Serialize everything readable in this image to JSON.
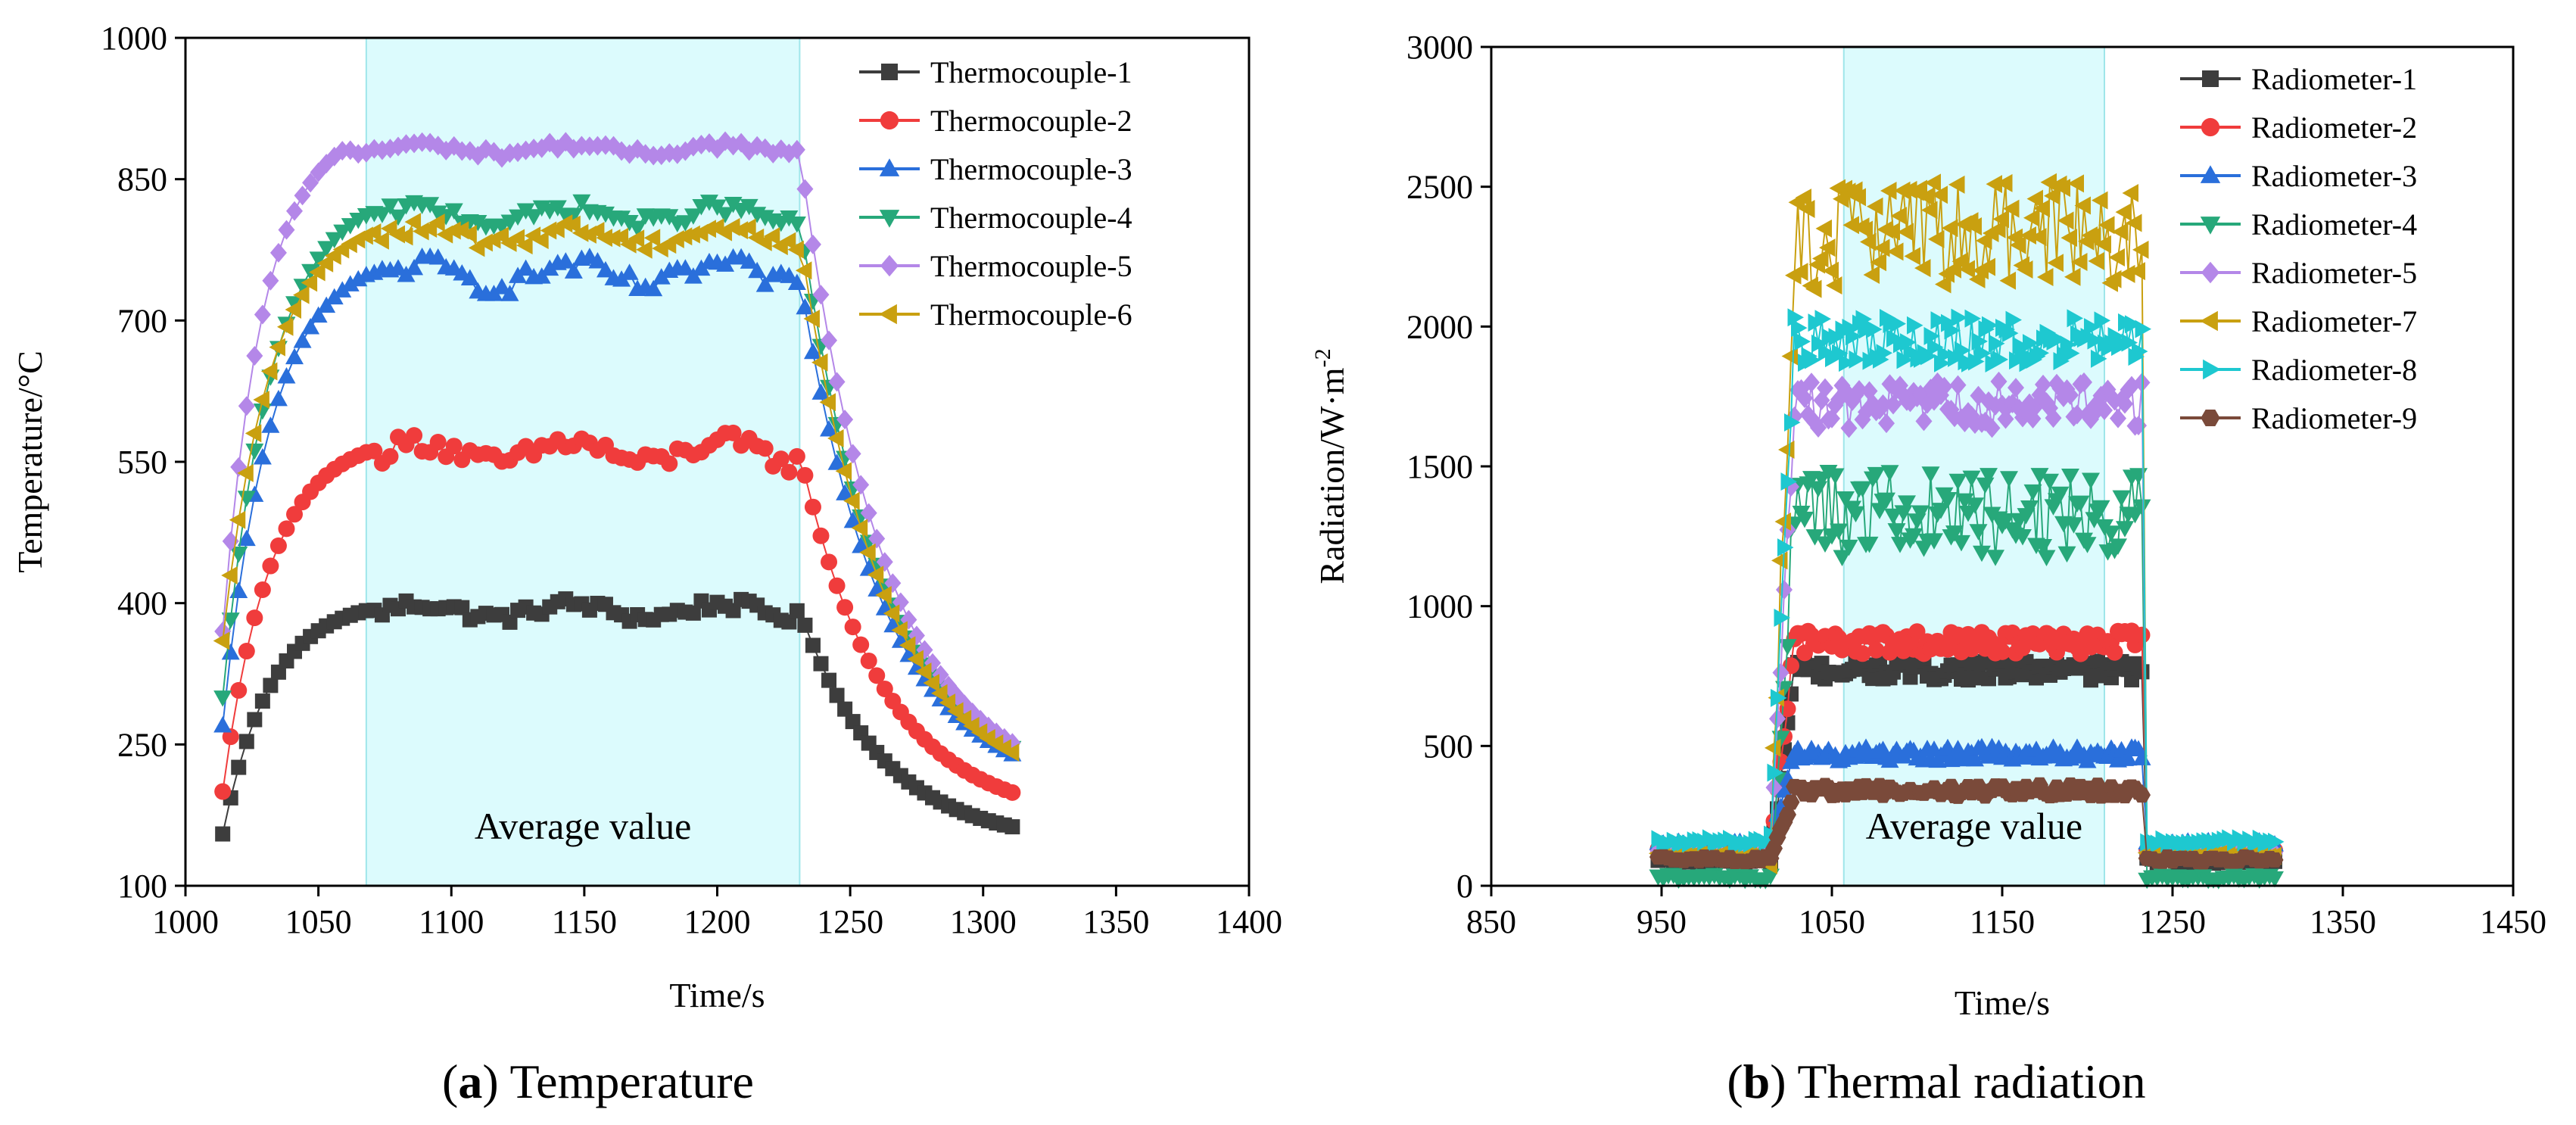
{
  "figure": {
    "caption_a_letter": "a",
    "caption_a_text": " Temperature",
    "caption_b_letter": "b",
    "caption_b_text": " Thermal radiation"
  },
  "chart_data": [
    {
      "type": "scatter",
      "panel": "a",
      "xlabel": "Time/s",
      "ylabel": "Temperature/°C",
      "xlim": [
        1000,
        1400
      ],
      "ylim": [
        100,
        1000
      ],
      "xticks": [
        1000,
        1050,
        1100,
        1150,
        1200,
        1250,
        1300,
        1350,
        1400
      ],
      "yticks": [
        100,
        250,
        400,
        550,
        700,
        850,
        1000
      ],
      "shaded_region": {
        "x0": 1068,
        "x1": 1231,
        "label": "Average value",
        "color": "#dcfbfd"
      },
      "legend_position": "top-right",
      "series": [
        {
          "name": "Thermocouple-1",
          "color": "#3d3d3d",
          "marker": "square",
          "phases": {
            "start": 1014,
            "rise_end": 1068,
            "plateau_end": 1231,
            "end": 1312,
            "start_value": 155,
            "plateau_value": 392,
            "end_value": 162,
            "noise": 9
          }
        },
        {
          "name": "Thermocouple-2",
          "color": "#f03c3c",
          "marker": "circle",
          "phases": {
            "start": 1014,
            "rise_end": 1068,
            "plateau_end": 1231,
            "end": 1312,
            "start_value": 200,
            "plateau_value": 560,
            "end_value": 198,
            "noise": 14
          }
        },
        {
          "name": "Thermocouple-3",
          "color": "#2a6fdb",
          "marker": "triangle-up",
          "phases": {
            "start": 1014,
            "rise_end": 1068,
            "plateau_end": 1231,
            "end": 1312,
            "start_value": 270,
            "plateau_value": 748,
            "end_value": 238,
            "noise": 14
          }
        },
        {
          "name": "Thermocouple-4",
          "color": "#27a87a",
          "marker": "triangle-down",
          "phases": {
            "start": 1014,
            "rise_end": 1068,
            "plateau_end": 1231,
            "end": 1312,
            "start_value": 300,
            "plateau_value": 812,
            "end_value": 245,
            "noise": 10
          }
        },
        {
          "name": "Thermocouple-5",
          "color": "#b487e8",
          "marker": "diamond",
          "phases": {
            "start": 1014,
            "rise_end": 1060,
            "plateau_end": 1231,
            "end": 1312,
            "start_value": 370,
            "plateau_value": 882,
            "end_value": 250,
            "noise": 6
          }
        },
        {
          "name": "Thermocouple-6",
          "color": "#c9a010",
          "marker": "triangle-left",
          "phases": {
            "start": 1014,
            "rise_end": 1068,
            "plateau_end": 1231,
            "end": 1312,
            "start_value": 360,
            "plateau_value": 790,
            "end_value": 240,
            "noise": 10
          }
        }
      ]
    },
    {
      "type": "scatter",
      "panel": "b",
      "xlabel": "Time/s",
      "ylabel": "Radiation/W·m",
      "ylabel_superscript": "-2",
      "xlim": [
        850,
        1450
      ],
      "ylim": [
        0,
        3000
      ],
      "xticks": [
        850,
        950,
        1050,
        1150,
        1250,
        1350,
        1450
      ],
      "yticks": [
        0,
        500,
        1000,
        1500,
        2000,
        2500,
        3000
      ],
      "shaded_region": {
        "x0": 1057,
        "x1": 1210,
        "label": "Average value",
        "color": "#dcfbfd"
      },
      "legend_position": "top-right",
      "series": [
        {
          "name": "Radiometer-1",
          "color": "#3d3d3d",
          "marker": "square",
          "phases": {
            "pre_start": 948,
            "pre_end": 1012,
            "pre_value": 90,
            "on_start": 1014,
            "on_end": 1233,
            "plateau_value": 770,
            "noise": 25,
            "post_start": 1235,
            "post_end": 1310,
            "post_value": 90
          }
        },
        {
          "name": "Radiometer-2",
          "color": "#f03c3c",
          "marker": "circle",
          "phases": {
            "pre_start": 948,
            "pre_end": 1012,
            "pre_value": 130,
            "on_start": 1014,
            "on_end": 1233,
            "plateau_value": 870,
            "noise": 30,
            "post_start": 1235,
            "post_end": 1310,
            "post_value": 130
          }
        },
        {
          "name": "Radiometer-3",
          "color": "#2a6fdb",
          "marker": "triangle-up",
          "phases": {
            "pre_start": 948,
            "pre_end": 1012,
            "pre_value": 150,
            "on_start": 1014,
            "on_end": 1233,
            "plateau_value": 470,
            "noise": 18,
            "post_start": 1235,
            "post_end": 1310,
            "post_value": 150
          }
        },
        {
          "name": "Radiometer-4",
          "color": "#27a87a",
          "marker": "triangle-down",
          "phases": {
            "pre_start": 948,
            "pre_end": 1012,
            "pre_value": 30,
            "on_start": 1014,
            "on_end": 1233,
            "plateau_value": 1330,
            "noise": 110,
            "post_start": 1235,
            "post_end": 1310,
            "post_value": 30
          }
        },
        {
          "name": "Radiometer-5",
          "color": "#b487e8",
          "marker": "diamond",
          "phases": {
            "pre_start": 948,
            "pre_end": 1012,
            "pre_value": 120,
            "on_start": 1014,
            "on_end": 1233,
            "plateau_value": 1720,
            "noise": 60,
            "post_start": 1235,
            "post_end": 1310,
            "post_value": 120
          }
        },
        {
          "name": "Radiometer-7",
          "color": "#c9a010",
          "marker": "triangle-left",
          "phases": {
            "pre_start": 948,
            "pre_end": 1012,
            "pre_value": 110,
            "on_start": 1014,
            "on_end": 1233,
            "plateau_value": 2330,
            "noise": 140,
            "post_start": 1235,
            "post_end": 1310,
            "post_value": 110
          }
        },
        {
          "name": "Radiometer-8",
          "color": "#1ec8d0",
          "marker": "triangle-right",
          "phases": {
            "pre_start": 948,
            "pre_end": 1012,
            "pre_value": 160,
            "on_start": 1014,
            "on_end": 1233,
            "plateau_value": 1950,
            "noise": 60,
            "post_start": 1235,
            "post_end": 1310,
            "post_value": 160
          }
        },
        {
          "name": "Radiometer-9",
          "color": "#7a4a3a",
          "marker": "hexagon",
          "phases": {
            "pre_start": 948,
            "pre_end": 1012,
            "pre_value": 95,
            "on_start": 1014,
            "on_end": 1233,
            "plateau_value": 340,
            "noise": 15,
            "post_start": 1235,
            "post_end": 1310,
            "post_value": 95
          }
        }
      ]
    }
  ]
}
